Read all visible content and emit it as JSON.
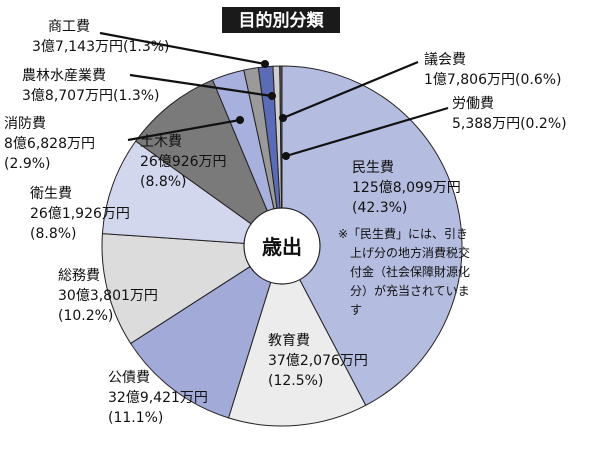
{
  "chart_data": {
    "type": "pie",
    "title": "目的別分類",
    "center_label": "歳出",
    "start_angle_deg": 0,
    "direction": "clockwise",
    "slices": [
      {
        "name": "民生費",
        "amount": "125億8,099万円",
        "percent": "(42.3%)",
        "value": 42.3,
        "color": "#b4bcdf"
      },
      {
        "name": "教育費",
        "amount": "37億2,076万円",
        "percent": "(12.5%)",
        "value": 12.5,
        "color": "#ececec"
      },
      {
        "name": "公債費",
        "amount": "32億9,421万円",
        "percent": "(11.1%)",
        "value": 11.1,
        "color": "#a2aad8"
      },
      {
        "name": "総務費",
        "amount": "30億3,801万円",
        "percent": "(10.2%)",
        "value": 10.2,
        "color": "#dcdcdc"
      },
      {
        "name": "衛生費",
        "amount": "26億1,926万円",
        "percent": "(8.8%)",
        "value": 8.8,
        "color": "#d3d7ee"
      },
      {
        "name": "土木費",
        "amount": "26億926万円",
        "percent": "(8.8%)",
        "value": 8.8,
        "color": "#7a7a7a"
      },
      {
        "name": "消防費",
        "amount": "8億6,828万円",
        "percent": "(2.9%)",
        "value": 2.9,
        "color": "#a8b0dd"
      },
      {
        "name": "農林水産業費",
        "amount": "3億8,707万円",
        "percent": "(1.3%)",
        "value": 1.3,
        "color": "#9a9a9a"
      },
      {
        "name": "商工費",
        "amount": "3億7,143万円",
        "percent": "(1.3%)",
        "value": 1.3,
        "color": "#5b6bb5"
      },
      {
        "name": "議会費",
        "amount": "1億7,806万円",
        "percent": "(0.6%)",
        "value": 0.6,
        "color": "#cfcfcf"
      },
      {
        "name": "労働費",
        "amount": "5,388万円",
        "percent": "(0.2%)",
        "value": 0.2,
        "color": "#555555"
      }
    ],
    "note": "※「民生費」には、引き上げ分の地方消費税交付金（社会保障財源化分）が充当されています"
  }
}
